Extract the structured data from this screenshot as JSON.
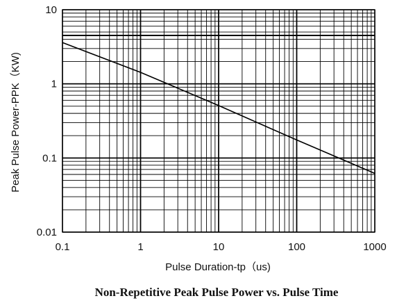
{
  "chart_data": {
    "type": "line",
    "title": "Non-Repetitive Peak Pulse Power vs. Pulse Time",
    "xlabel": "Pulse Duration-tp（us)",
    "ylabel": "Peak Pulse Power-PPK（KW)",
    "xscale": "log",
    "yscale": "log",
    "xlim": [
      0.1,
      1000
    ],
    "ylim": [
      0.01,
      10
    ],
    "x_ticks": [
      "0.1",
      "1",
      "10",
      "100",
      "1000"
    ],
    "y_ticks": [
      "0.01",
      "0.1",
      "1",
      "10"
    ],
    "grid": true,
    "series": [
      {
        "x": [
          0.1,
          1,
          10,
          100,
          1000
        ],
        "y": [
          3.6,
          1.43,
          0.51,
          0.175,
          0.062
        ]
      }
    ],
    "reference_line": {
      "y": 4.5
    }
  }
}
